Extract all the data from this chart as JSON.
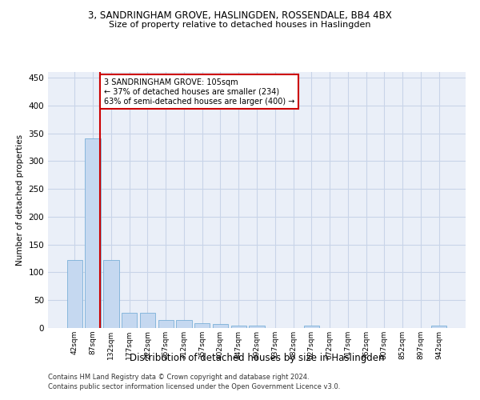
{
  "title_line1": "3, SANDRINGHAM GROVE, HASLINGDEN, ROSSENDALE, BB4 4BX",
  "title_line2": "Size of property relative to detached houses in Haslingden",
  "xlabel": "Distribution of detached houses by size in Haslingden",
  "ylabel": "Number of detached properties",
  "bar_labels": [
    "42sqm",
    "87sqm",
    "132sqm",
    "177sqm",
    "222sqm",
    "267sqm",
    "312sqm",
    "357sqm",
    "402sqm",
    "447sqm",
    "492sqm",
    "537sqm",
    "582sqm",
    "627sqm",
    "672sqm",
    "717sqm",
    "762sqm",
    "807sqm",
    "852sqm",
    "897sqm",
    "942sqm"
  ],
  "bar_values": [
    122,
    340,
    122,
    28,
    28,
    15,
    15,
    8,
    7,
    5,
    5,
    0,
    0,
    5,
    0,
    0,
    0,
    0,
    0,
    0,
    5
  ],
  "bar_color": "#c5d8f0",
  "bar_edge_color": "#7ab0d8",
  "annotation_line1": "3 SANDRINGHAM GROVE: 105sqm",
  "annotation_line2": "← 37% of detached houses are smaller (234)",
  "annotation_line3": "63% of semi-detached houses are larger (400) →",
  "annotation_box_color": "#ffffff",
  "annotation_box_edge_color": "#cc0000",
  "vline_color": "#cc0000",
  "ylim": [
    0,
    460
  ],
  "yticks": [
    0,
    50,
    100,
    150,
    200,
    250,
    300,
    350,
    400,
    450
  ],
  "grid_color": "#c8d4e8",
  "bg_color": "#eaeff8",
  "footer_line1": "Contains HM Land Registry data © Crown copyright and database right 2024.",
  "footer_line2": "Contains public sector information licensed under the Open Government Licence v3.0."
}
